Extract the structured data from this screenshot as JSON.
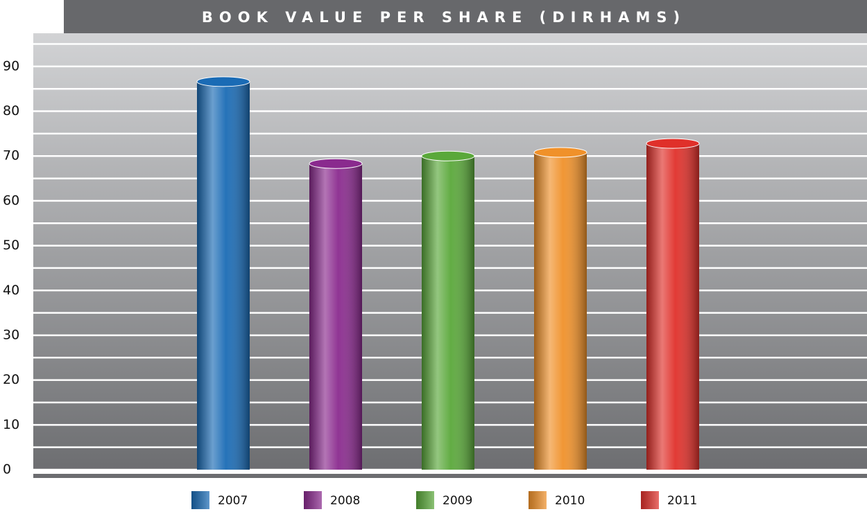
{
  "chart_data": {
    "type": "bar",
    "title": "BOOK VALUE PER SHARE (DIRHAMS)",
    "categories": [
      "2007",
      "2008",
      "2009",
      "2010",
      "2011"
    ],
    "values": [
      86.6,
      68.3,
      70.0,
      70.8,
      72.8
    ],
    "colors": [
      "#1a6bb5",
      "#8a2a8e",
      "#5aa83a",
      "#f0912a",
      "#e0302a"
    ],
    "ylim": [
      0,
      97.4
    ],
    "yticks": [
      0,
      10,
      20,
      30,
      40,
      50,
      60,
      70,
      80,
      90
    ],
    "minor_yticks": [
      5,
      15,
      25,
      35,
      45,
      55,
      65,
      75,
      85,
      95
    ],
    "grid": true
  }
}
